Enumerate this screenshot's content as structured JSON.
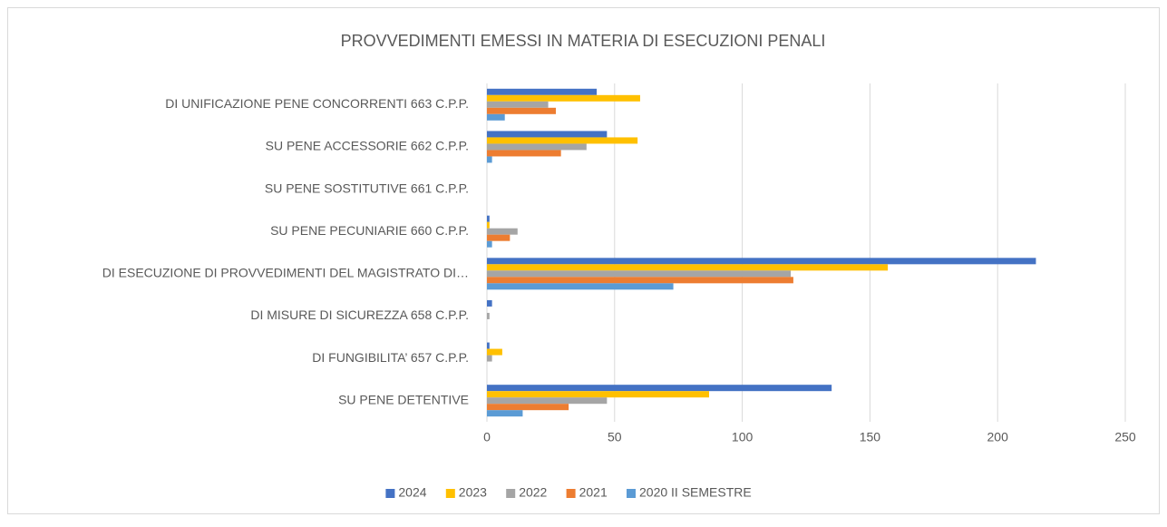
{
  "chart_data": {
    "type": "hbar",
    "title": "PROVVEDIMENTI EMESSI IN MATERIA DI ESECUZIONI PENALI",
    "categories": [
      "DI UNIFICAZIONE PENE CONCORRENTI 663 C.P.P.",
      "SU PENE ACCESSORIE 662 C.P.P.",
      "SU PENE SOSTITUTIVE 661 C.P.P.",
      "SU PENE PECUNIARIE 660 C.P.P.",
      "DI ESECUZIONE DI PROVVEDIMENTI DEL MAGISTRATO DI…",
      "DI MISURE DI SICUREZZA 658 C.P.P.",
      "DI FUNGIBILITA’ 657 C.P.P.",
      "SU PENE DETENTIVE"
    ],
    "series": [
      {
        "name": "2024",
        "color": "#4472c4",
        "values": [
          43,
          47,
          0,
          1,
          215,
          2,
          1,
          135
        ]
      },
      {
        "name": "2023",
        "color": "#ffc000",
        "values": [
          60,
          59,
          0,
          1,
          157,
          0,
          6,
          87
        ]
      },
      {
        "name": "2022",
        "color": "#a5a5a5",
        "values": [
          24,
          39,
          0,
          12,
          119,
          1,
          2,
          47
        ]
      },
      {
        "name": "2021",
        "color": "#ed7d31",
        "values": [
          27,
          29,
          0,
          9,
          120,
          0,
          0,
          32
        ]
      },
      {
        "name": "2020 II SEMESTRE",
        "color": "#5b9bd5",
        "values": [
          7,
          2,
          0,
          2,
          73,
          0,
          0,
          14
        ]
      }
    ],
    "xlim": [
      0,
      250
    ],
    "xticks": [
      0,
      50,
      100,
      150,
      200,
      250
    ],
    "grid": true,
    "legend": "bottom"
  }
}
